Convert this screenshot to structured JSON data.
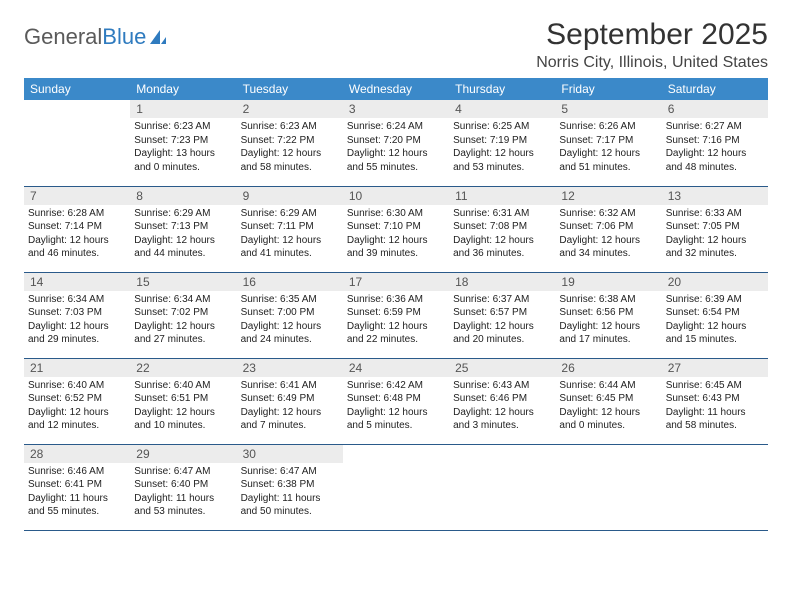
{
  "logo": {
    "word1": "General",
    "word2": "Blue"
  },
  "title": "September 2025",
  "location": "Norris City, Illinois, United States",
  "colors": {
    "header_bg": "#3b89c9",
    "daynum_bg": "#ececec",
    "row_border": "#2a5a8a",
    "logo_gray": "#5a5a5a",
    "logo_blue": "#2f7bbf"
  },
  "day_headers": [
    "Sunday",
    "Monday",
    "Tuesday",
    "Wednesday",
    "Thursday",
    "Friday",
    "Saturday"
  ],
  "weeks": [
    [
      null,
      {
        "n": "1",
        "sr": "Sunrise: 6:23 AM",
        "ss": "Sunset: 7:23 PM",
        "dl": "Daylight: 13 hours and 0 minutes."
      },
      {
        "n": "2",
        "sr": "Sunrise: 6:23 AM",
        "ss": "Sunset: 7:22 PM",
        "dl": "Daylight: 12 hours and 58 minutes."
      },
      {
        "n": "3",
        "sr": "Sunrise: 6:24 AM",
        "ss": "Sunset: 7:20 PM",
        "dl": "Daylight: 12 hours and 55 minutes."
      },
      {
        "n": "4",
        "sr": "Sunrise: 6:25 AM",
        "ss": "Sunset: 7:19 PM",
        "dl": "Daylight: 12 hours and 53 minutes."
      },
      {
        "n": "5",
        "sr": "Sunrise: 6:26 AM",
        "ss": "Sunset: 7:17 PM",
        "dl": "Daylight: 12 hours and 51 minutes."
      },
      {
        "n": "6",
        "sr": "Sunrise: 6:27 AM",
        "ss": "Sunset: 7:16 PM",
        "dl": "Daylight: 12 hours and 48 minutes."
      }
    ],
    [
      {
        "n": "7",
        "sr": "Sunrise: 6:28 AM",
        "ss": "Sunset: 7:14 PM",
        "dl": "Daylight: 12 hours and 46 minutes."
      },
      {
        "n": "8",
        "sr": "Sunrise: 6:29 AM",
        "ss": "Sunset: 7:13 PM",
        "dl": "Daylight: 12 hours and 44 minutes."
      },
      {
        "n": "9",
        "sr": "Sunrise: 6:29 AM",
        "ss": "Sunset: 7:11 PM",
        "dl": "Daylight: 12 hours and 41 minutes."
      },
      {
        "n": "10",
        "sr": "Sunrise: 6:30 AM",
        "ss": "Sunset: 7:10 PM",
        "dl": "Daylight: 12 hours and 39 minutes."
      },
      {
        "n": "11",
        "sr": "Sunrise: 6:31 AM",
        "ss": "Sunset: 7:08 PM",
        "dl": "Daylight: 12 hours and 36 minutes."
      },
      {
        "n": "12",
        "sr": "Sunrise: 6:32 AM",
        "ss": "Sunset: 7:06 PM",
        "dl": "Daylight: 12 hours and 34 minutes."
      },
      {
        "n": "13",
        "sr": "Sunrise: 6:33 AM",
        "ss": "Sunset: 7:05 PM",
        "dl": "Daylight: 12 hours and 32 minutes."
      }
    ],
    [
      {
        "n": "14",
        "sr": "Sunrise: 6:34 AM",
        "ss": "Sunset: 7:03 PM",
        "dl": "Daylight: 12 hours and 29 minutes."
      },
      {
        "n": "15",
        "sr": "Sunrise: 6:34 AM",
        "ss": "Sunset: 7:02 PM",
        "dl": "Daylight: 12 hours and 27 minutes."
      },
      {
        "n": "16",
        "sr": "Sunrise: 6:35 AM",
        "ss": "Sunset: 7:00 PM",
        "dl": "Daylight: 12 hours and 24 minutes."
      },
      {
        "n": "17",
        "sr": "Sunrise: 6:36 AM",
        "ss": "Sunset: 6:59 PM",
        "dl": "Daylight: 12 hours and 22 minutes."
      },
      {
        "n": "18",
        "sr": "Sunrise: 6:37 AM",
        "ss": "Sunset: 6:57 PM",
        "dl": "Daylight: 12 hours and 20 minutes."
      },
      {
        "n": "19",
        "sr": "Sunrise: 6:38 AM",
        "ss": "Sunset: 6:56 PM",
        "dl": "Daylight: 12 hours and 17 minutes."
      },
      {
        "n": "20",
        "sr": "Sunrise: 6:39 AM",
        "ss": "Sunset: 6:54 PM",
        "dl": "Daylight: 12 hours and 15 minutes."
      }
    ],
    [
      {
        "n": "21",
        "sr": "Sunrise: 6:40 AM",
        "ss": "Sunset: 6:52 PM",
        "dl": "Daylight: 12 hours and 12 minutes."
      },
      {
        "n": "22",
        "sr": "Sunrise: 6:40 AM",
        "ss": "Sunset: 6:51 PM",
        "dl": "Daylight: 12 hours and 10 minutes."
      },
      {
        "n": "23",
        "sr": "Sunrise: 6:41 AM",
        "ss": "Sunset: 6:49 PM",
        "dl": "Daylight: 12 hours and 7 minutes."
      },
      {
        "n": "24",
        "sr": "Sunrise: 6:42 AM",
        "ss": "Sunset: 6:48 PM",
        "dl": "Daylight: 12 hours and 5 minutes."
      },
      {
        "n": "25",
        "sr": "Sunrise: 6:43 AM",
        "ss": "Sunset: 6:46 PM",
        "dl": "Daylight: 12 hours and 3 minutes."
      },
      {
        "n": "26",
        "sr": "Sunrise: 6:44 AM",
        "ss": "Sunset: 6:45 PM",
        "dl": "Daylight: 12 hours and 0 minutes."
      },
      {
        "n": "27",
        "sr": "Sunrise: 6:45 AM",
        "ss": "Sunset: 6:43 PM",
        "dl": "Daylight: 11 hours and 58 minutes."
      }
    ],
    [
      {
        "n": "28",
        "sr": "Sunrise: 6:46 AM",
        "ss": "Sunset: 6:41 PM",
        "dl": "Daylight: 11 hours and 55 minutes."
      },
      {
        "n": "29",
        "sr": "Sunrise: 6:47 AM",
        "ss": "Sunset: 6:40 PM",
        "dl": "Daylight: 11 hours and 53 minutes."
      },
      {
        "n": "30",
        "sr": "Sunrise: 6:47 AM",
        "ss": "Sunset: 6:38 PM",
        "dl": "Daylight: 11 hours and 50 minutes."
      },
      null,
      null,
      null,
      null
    ]
  ]
}
